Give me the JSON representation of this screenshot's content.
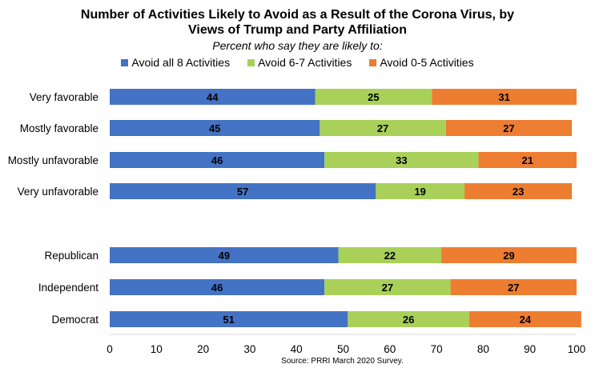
{
  "chart_data": {
    "type": "bar",
    "orientation": "horizontal",
    "stacked": true,
    "title_line1": "Number of Activities Likely to Avoid as a Result of the Corona Virus, by",
    "title_line2": "Views of Trump and Party Affiliation",
    "subtitle": "Percent who say they are likely to:",
    "source": "Source: PRRI March 2020 Survey.",
    "categories": [
      "Very favorable",
      "Mostly favorable",
      "Mostly unfavorable",
      "Very unfavorable",
      "Republican",
      "Independent",
      "Democrat"
    ],
    "series": [
      {
        "name": "Avoid all 8 Activities",
        "color": "#4472C4",
        "values": [
          44,
          45,
          46,
          57,
          49,
          46,
          51
        ]
      },
      {
        "name": "Avoid 6-7 Activities",
        "color": "#A9D15A",
        "values": [
          25,
          27,
          33,
          19,
          22,
          27,
          26
        ]
      },
      {
        "name": "Avoid 0-5 Activities",
        "color": "#ED7D31",
        "values": [
          31,
          27,
          21,
          23,
          29,
          27,
          24
        ]
      }
    ],
    "xlim": [
      0,
      100
    ],
    "xticks": [
      "0",
      "10",
      "20",
      "30",
      "40",
      "50",
      "60",
      "70",
      "80",
      "90",
      "100"
    ],
    "legend_position": "top",
    "grid": false
  }
}
